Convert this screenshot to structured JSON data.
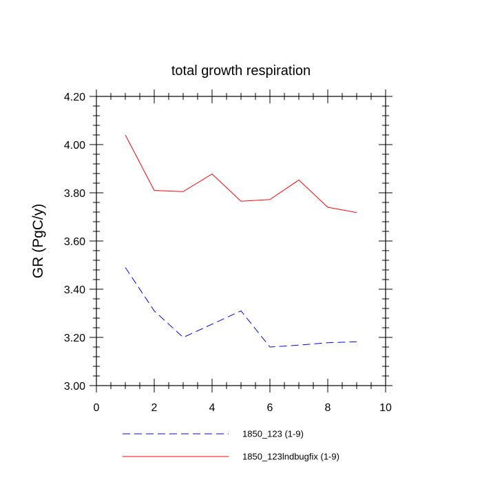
{
  "chart_data": {
    "type": "line",
    "title": "total growth respiration",
    "xlabel": "",
    "ylabel": "GR  (PgC/y)",
    "xlim": [
      0,
      10
    ],
    "ylim": [
      3.0,
      4.2
    ],
    "x_ticks": [
      0,
      2,
      4,
      6,
      8,
      10
    ],
    "x_tick_labels": [
      "0",
      "2",
      "4",
      "6",
      "8",
      "10"
    ],
    "y_ticks": [
      3.0,
      3.2,
      3.4,
      3.6,
      3.8,
      4.0,
      4.2
    ],
    "y_tick_labels": [
      "3.00",
      "3.20",
      "3.40",
      "3.60",
      "3.80",
      "4.00",
      "4.20"
    ],
    "grid": false,
    "legend_position": "bottom",
    "series": [
      {
        "name": "1850_123 (1-9)",
        "color": "#0000ff",
        "dash": "dashed",
        "x": [
          1,
          2,
          3,
          4,
          5,
          6,
          7,
          8,
          9
        ],
        "values": [
          3.49,
          3.31,
          3.2,
          3.255,
          3.31,
          3.16,
          3.168,
          3.178,
          3.182
        ]
      },
      {
        "name": "1850_123lndbugfix (1-9)",
        "color": "#ff0000",
        "dash": "solid",
        "x": [
          1,
          2,
          3,
          4,
          5,
          6,
          7,
          8,
          9
        ],
        "values": [
          4.04,
          3.81,
          3.805,
          3.878,
          3.765,
          3.772,
          3.853,
          3.74,
          3.718
        ]
      }
    ]
  }
}
